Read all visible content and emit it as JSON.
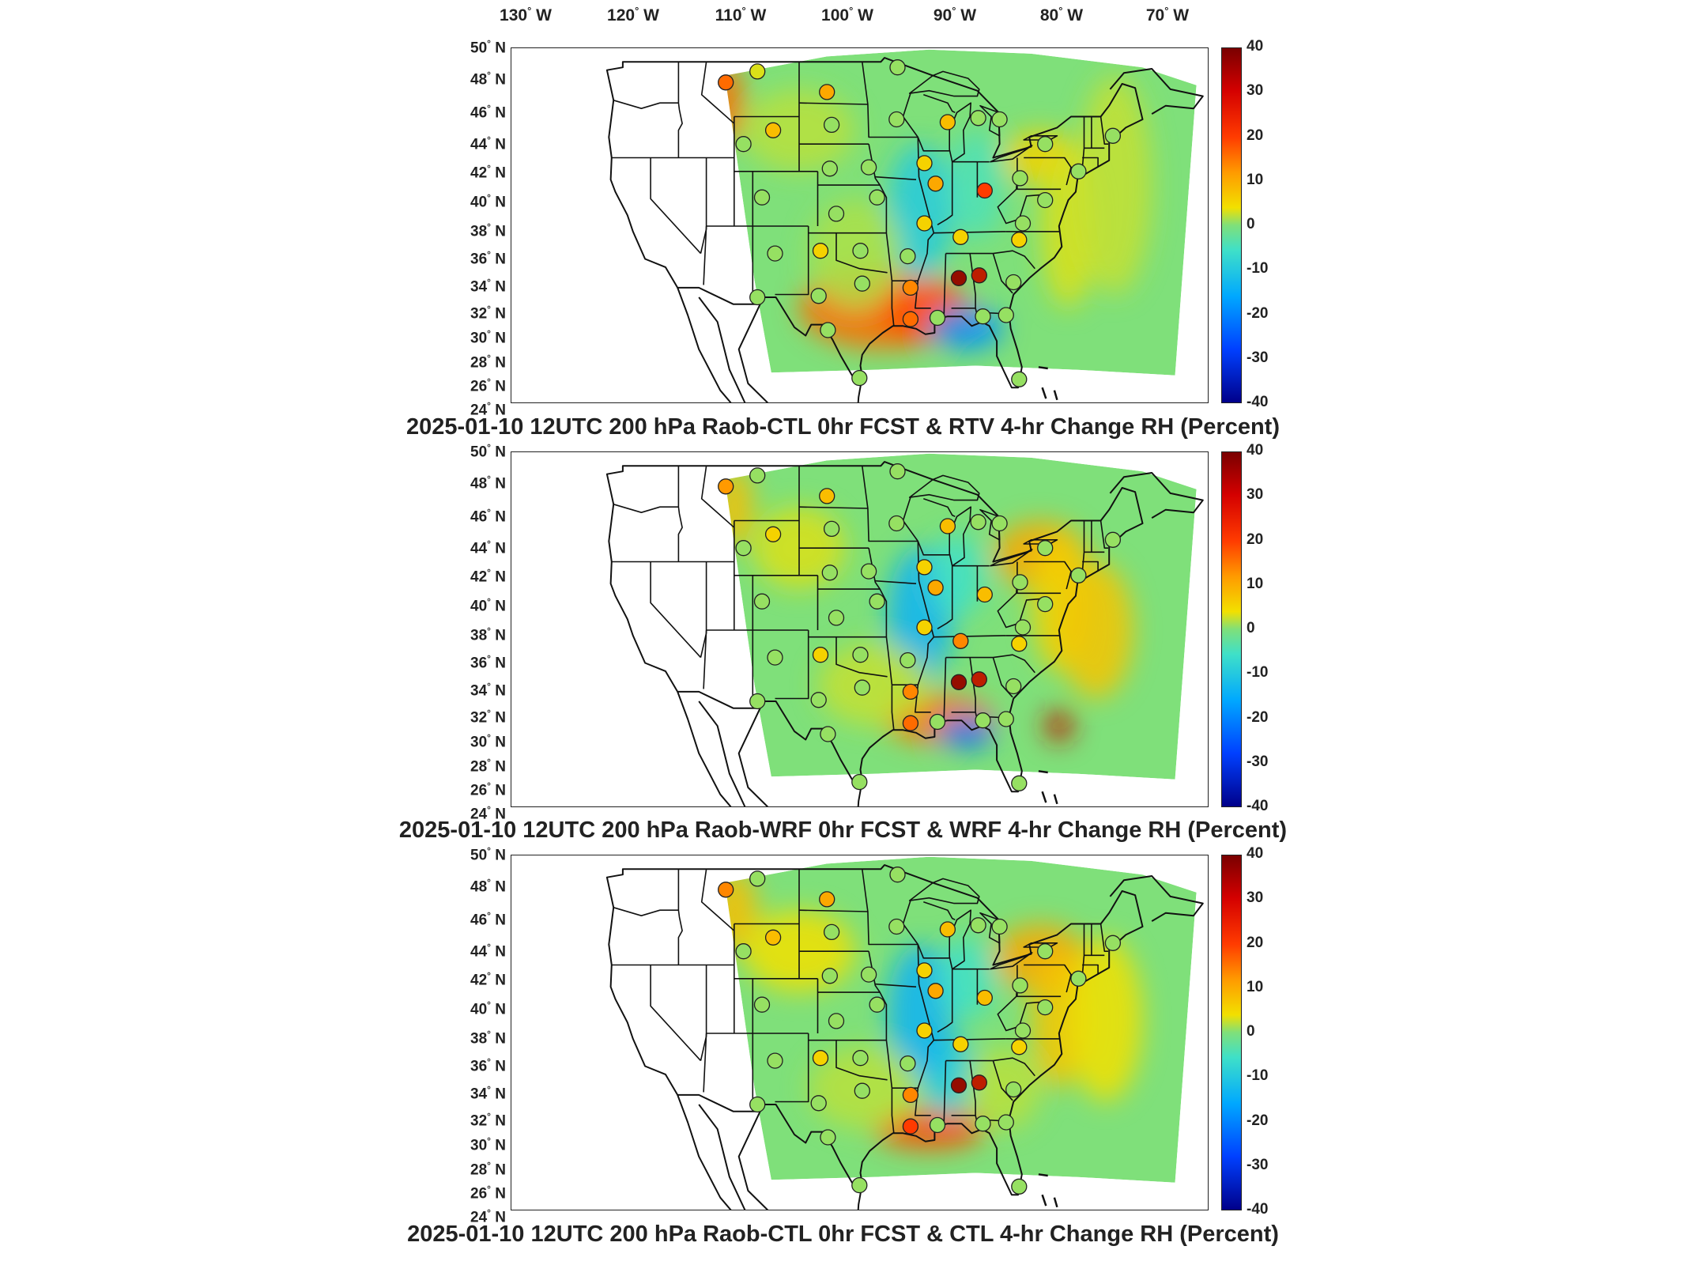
{
  "longitude_labels": [
    "130",
    "120",
    "110",
    "100",
    "90",
    "80",
    "70"
  ],
  "lon_suffix": "W",
  "lat_labels": [
    "50",
    "48",
    "46",
    "44",
    "42",
    "40",
    "38",
    "36",
    "34",
    "32",
    "30",
    "28",
    "26",
    "24"
  ],
  "lat_suffix": "N",
  "colorbar": {
    "ticks": [
      "40",
      "30",
      "20",
      "10",
      "0",
      "-10",
      "-20",
      "-30",
      "-40"
    ],
    "min": -40,
    "max": 40
  },
  "panels": [
    {
      "title": "2025-01-10 12UTC 200 hPa Raob-CTL 0hr FCST & RTV 4-hr Change RH (Percent)"
    },
    {
      "title": "2025-01-10 12UTC 200 hPa Raob-WRF 0hr FCST & WRF 4-hr Change RH (Percent)"
    },
    {
      "title": "2025-01-10 12UTC 200 hPa Raob-CTL 0hr FCST & CTL 4-hr Change RH (Percent)"
    }
  ],
  "colors": {
    "field_base": "#7fe07a",
    "outline": "#111111"
  },
  "stations": [
    {
      "lon": -111.9,
      "lat": 47.5,
      "v": [
        25,
        20,
        22
      ]
    },
    {
      "lon": -108.5,
      "lat": 48.3,
      "v": [
        8,
        2,
        2
      ]
    },
    {
      "lon": -101.0,
      "lat": 46.8,
      "v": [
        18,
        15,
        18
      ]
    },
    {
      "lon": -106.8,
      "lat": 44.0,
      "v": [
        15,
        12,
        15
      ]
    },
    {
      "lon": -110.0,
      "lat": 43.0,
      "v": [
        2,
        2,
        2
      ]
    },
    {
      "lon": -100.5,
      "lat": 44.4,
      "v": [
        2,
        2,
        2
      ]
    },
    {
      "lon": -93.5,
      "lat": 44.8,
      "v": [
        2,
        2,
        2
      ]
    },
    {
      "lon": -93.4,
      "lat": 48.6,
      "v": [
        2,
        2,
        2
      ]
    },
    {
      "lon": -88.0,
      "lat": 44.6,
      "v": [
        15,
        15,
        15
      ]
    },
    {
      "lon": -84.7,
      "lat": 44.9,
      "v": [
        2,
        2,
        2
      ]
    },
    {
      "lon": -90.5,
      "lat": 41.6,
      "v": [
        12,
        12,
        12
      ]
    },
    {
      "lon": -89.3,
      "lat": 40.1,
      "v": [
        18,
        18,
        18
      ]
    },
    {
      "lon": -100.7,
      "lat": 41.2,
      "v": [
        2,
        2,
        2
      ]
    },
    {
      "lon": -96.5,
      "lat": 41.3,
      "v": [
        2,
        2,
        2
      ]
    },
    {
      "lon": -108.0,
      "lat": 39.1,
      "v": [
        2,
        2,
        2
      ]
    },
    {
      "lon": -100.0,
      "lat": 37.9,
      "v": [
        2,
        2,
        2
      ]
    },
    {
      "lon": -95.6,
      "lat": 39.1,
      "v": [
        2,
        2,
        2
      ]
    },
    {
      "lon": -90.5,
      "lat": 37.2,
      "v": [
        12,
        12,
        12
      ]
    },
    {
      "lon": -86.6,
      "lat": 36.2,
      "v": [
        12,
        22,
        12
      ]
    },
    {
      "lon": -84.0,
      "lat": 39.6,
      "v": [
        30,
        15,
        15
      ]
    },
    {
      "lon": -80.2,
      "lat": 40.5,
      "v": [
        2,
        2,
        2
      ]
    },
    {
      "lon": -82.4,
      "lat": 44.8,
      "v": [
        2,
        2,
        2
      ]
    },
    {
      "lon": -77.5,
      "lat": 43.0,
      "v": [
        2,
        2,
        2
      ]
    },
    {
      "lon": -70.2,
      "lat": 43.6,
      "v": [
        2,
        2,
        2
      ]
    },
    {
      "lon": -73.9,
      "lat": 41.0,
      "v": [
        2,
        2,
        2
      ]
    },
    {
      "lon": -77.5,
      "lat": 38.9,
      "v": [
        2,
        2,
        2
      ]
    },
    {
      "lon": -79.9,
      "lat": 37.2,
      "v": [
        2,
        2,
        2
      ]
    },
    {
      "lon": -80.3,
      "lat": 36.0,
      "v": [
        12,
        12,
        12
      ]
    },
    {
      "lon": -80.9,
      "lat": 32.9,
      "v": [
        2,
        2,
        2
      ]
    },
    {
      "lon": -84.6,
      "lat": 33.4,
      "v": [
        35,
        35,
        35
      ]
    },
    {
      "lon": -86.8,
      "lat": 33.2,
      "v": [
        38,
        38,
        38
      ]
    },
    {
      "lon": -92.3,
      "lat": 34.8,
      "v": [
        2,
        2,
        2
      ]
    },
    {
      "lon": -97.4,
      "lat": 35.2,
      "v": [
        2,
        2,
        2
      ]
    },
    {
      "lon": -101.7,
      "lat": 35.2,
      "v": [
        12,
        12,
        12
      ]
    },
    {
      "lon": -106.6,
      "lat": 35.0,
      "v": [
        2,
        2,
        2
      ]
    },
    {
      "lon": -101.9,
      "lat": 31.9,
      "v": [
        2,
        2,
        2
      ]
    },
    {
      "lon": -97.2,
      "lat": 32.8,
      "v": [
        2,
        2,
        2
      ]
    },
    {
      "lon": -92.0,
      "lat": 32.5,
      "v": [
        22,
        22,
        22
      ]
    },
    {
      "lon": -89.1,
      "lat": 30.3,
      "v": [
        2,
        2,
        2
      ]
    },
    {
      "lon": -92.0,
      "lat": 30.2,
      "v": [
        25,
        25,
        30
      ]
    },
    {
      "lon": -84.2,
      "lat": 30.4,
      "v": [
        2,
        2,
        2
      ]
    },
    {
      "lon": -81.7,
      "lat": 30.5,
      "v": [
        2,
        2,
        2
      ]
    },
    {
      "lon": -80.3,
      "lat": 25.8,
      "v": [
        2,
        2,
        2
      ]
    },
    {
      "lon": -97.5,
      "lat": 25.9,
      "v": [
        2,
        2,
        2
      ]
    },
    {
      "lon": -100.9,
      "lat": 29.4,
      "v": [
        2,
        2,
        2
      ]
    },
    {
      "lon": -108.5,
      "lat": 31.8,
      "v": [
        2,
        2,
        2
      ]
    }
  ]
}
